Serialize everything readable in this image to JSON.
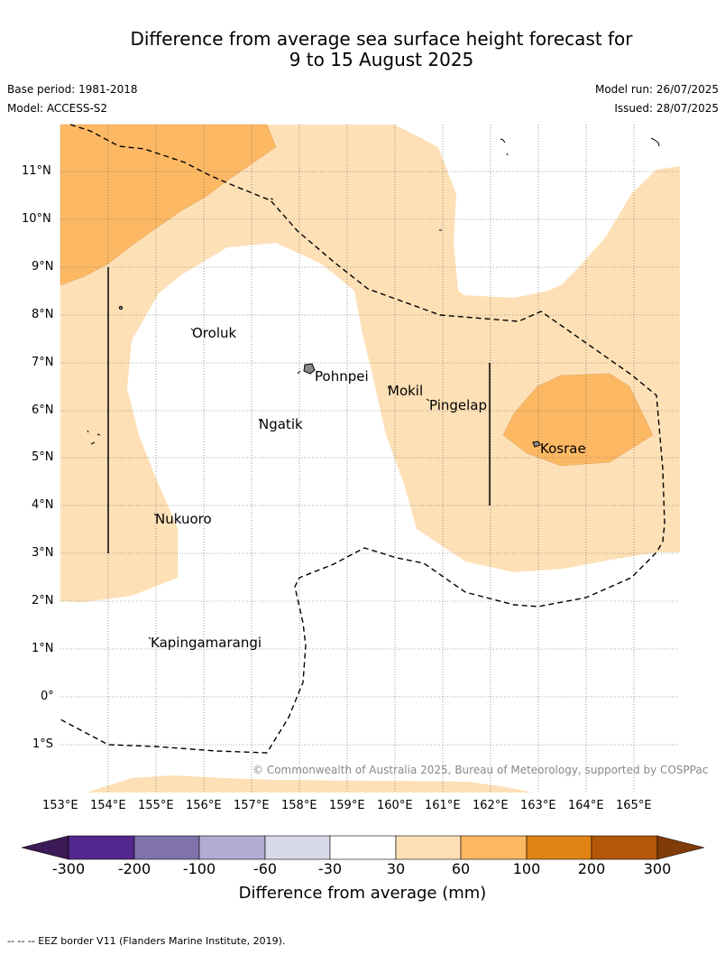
{
  "title_line1": "Difference from average sea surface height forecast for",
  "title_line2": "9 to 15 August 2025",
  "base_period": "Base period: 1981-2018",
  "model": "Model: ACCESS-S2",
  "model_run": "Model run: 26/07/2025",
  "issued": "Issued: 28/07/2025",
  "copyright": "© Commonwealth of Australia 2025, Bureau of Meteorology, supported by COSPPac",
  "colorbar": {
    "title": "Difference from average (mm)",
    "tick_labels": [
      "-300",
      "-200",
      "-100",
      "-60",
      "-30",
      "30",
      "60",
      "100",
      "200",
      "300"
    ],
    "colors": [
      "#3b1a55",
      "#54278f",
      "#8073ac",
      "#b2abd2",
      "#d8daeb",
      "#ffffff",
      "#fee0b6",
      "#fdb863",
      "#e08214",
      "#b35806",
      "#7f3b08"
    ]
  },
  "footnote": "-- -- -- EEZ border V11 (Flanders Marine Institute, 2019).",
  "axes": {
    "lon_labels": [
      "153°E",
      "154°E",
      "155°E",
      "156°E",
      "157°E",
      "158°E",
      "159°E",
      "160°E",
      "161°E",
      "162°E",
      "163°E",
      "164°E",
      "165°E"
    ],
    "lat_labels": [
      "11°N",
      "10°N",
      "9°N",
      "8°N",
      "7°N",
      "6°N",
      "5°N",
      "4°N",
      "3°N",
      "2°N",
      "1°N",
      "0°",
      "1°S"
    ]
  },
  "places": {
    "oroluk": "Oroluk",
    "pohnpei": "Pohnpei",
    "mokil": "Mokil",
    "pingelap": "Pingelap",
    "ngatik": "Ngatik",
    "kosrae": "Kosrae",
    "nukuoro": "Nukuoro",
    "kapingamarangi": "Kapingamarangi"
  }
}
